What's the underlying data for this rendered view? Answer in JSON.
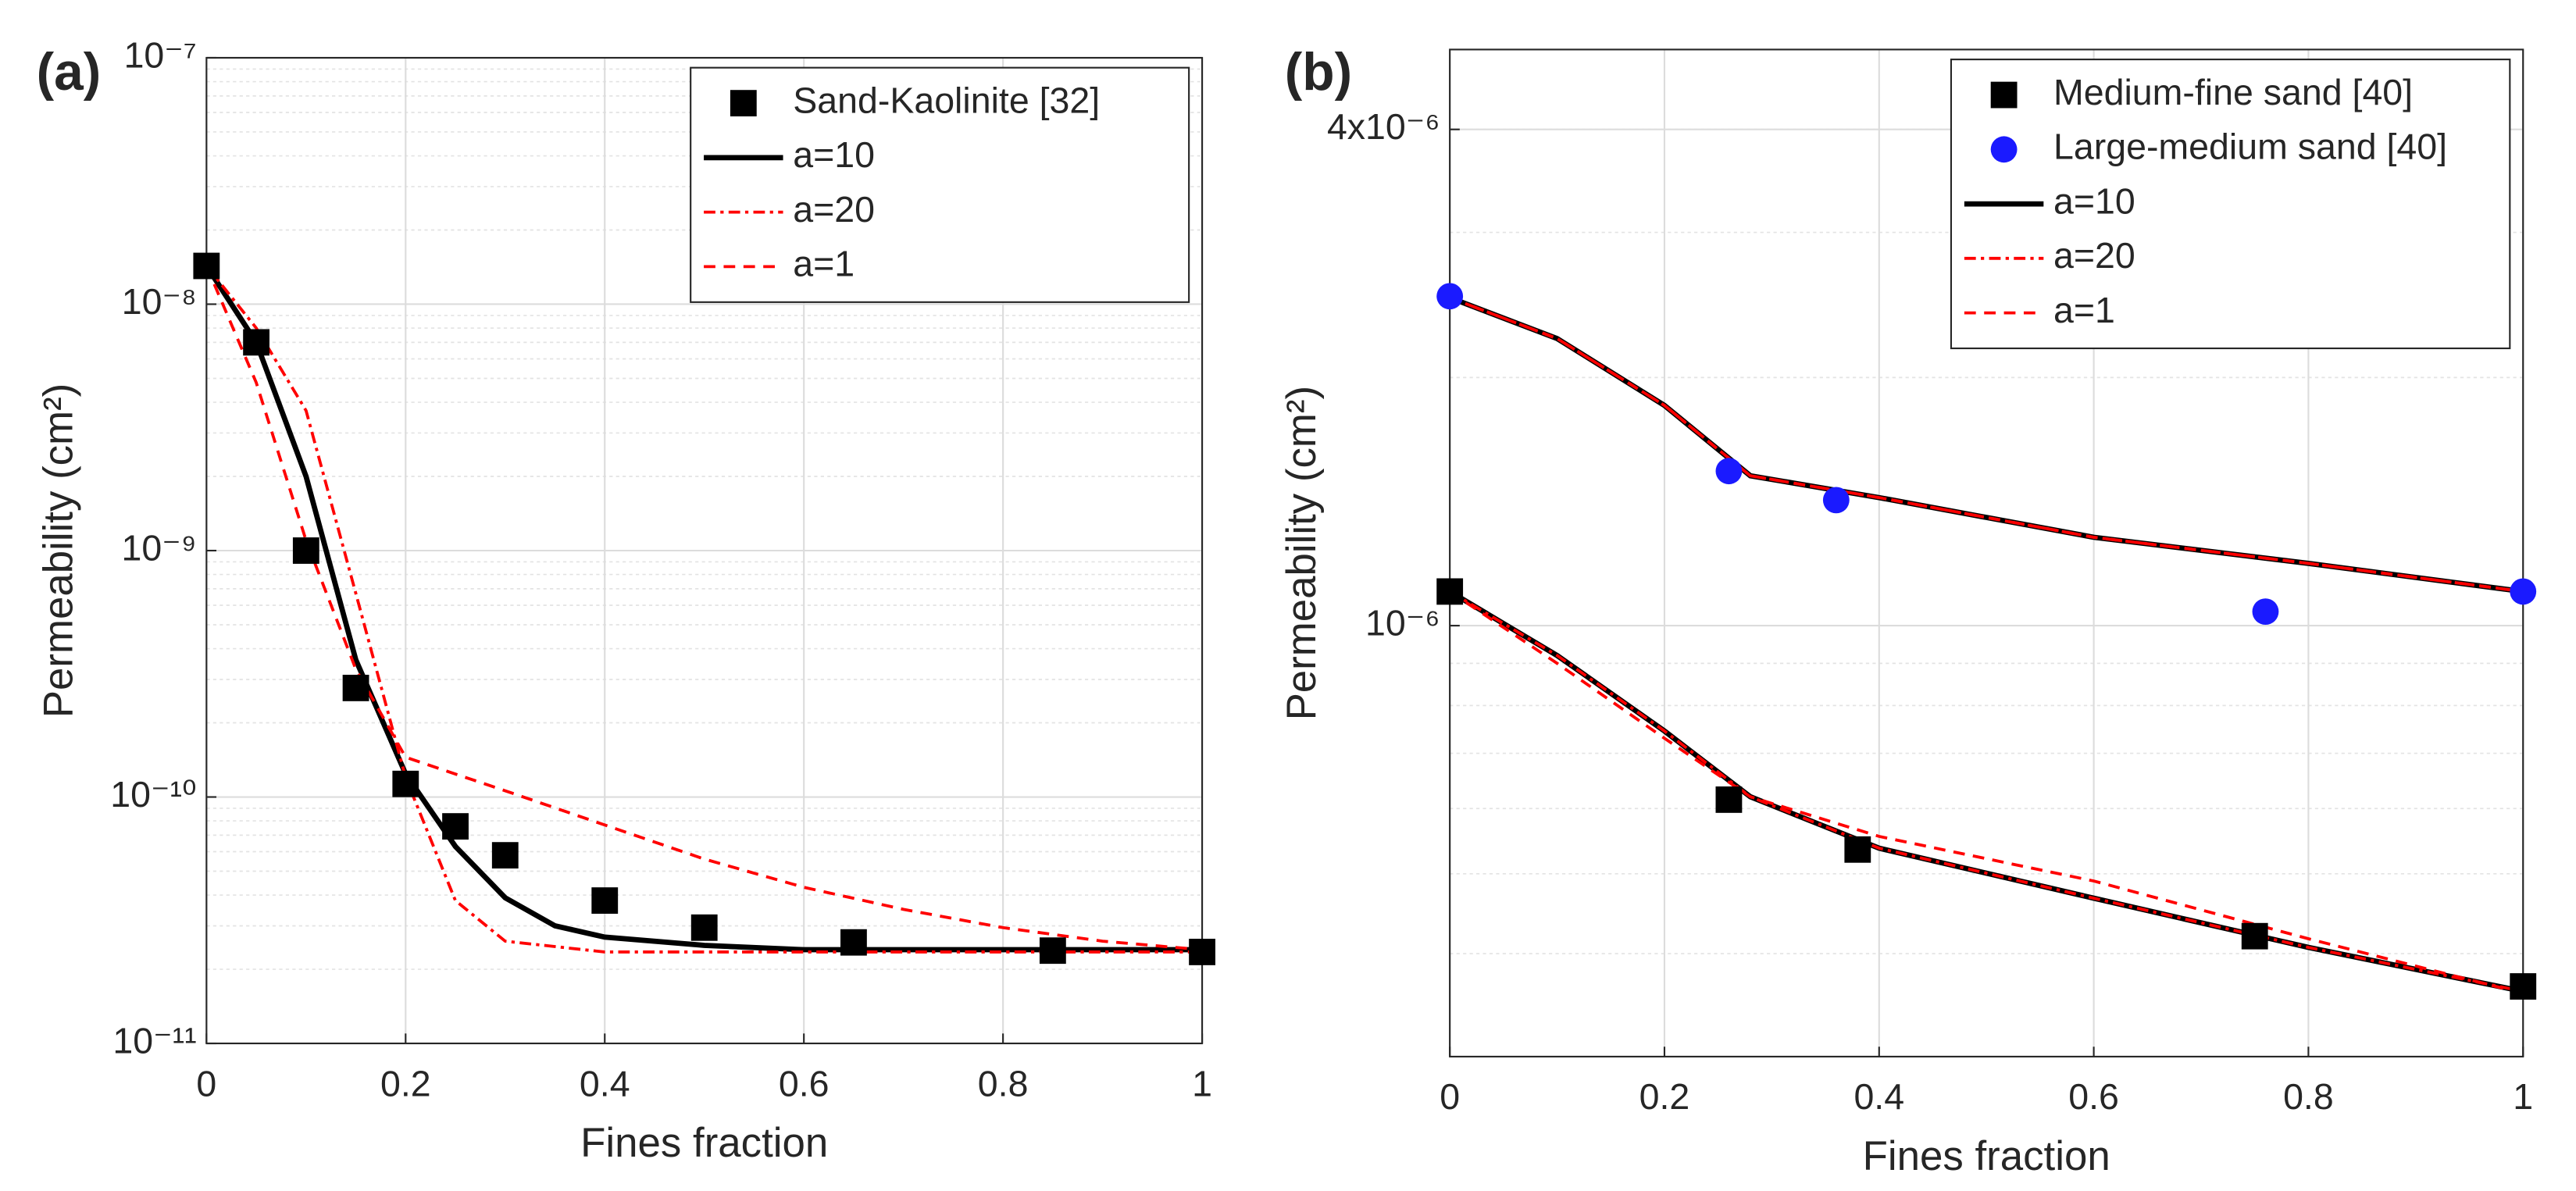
{
  "chart_data": [
    {
      "type": "line",
      "panel_label": "(a)",
      "xlabel": "Fines fraction",
      "ylabel": "Permeability (cm²)",
      "xlim": [
        0,
        1
      ],
      "xticks": [
        0,
        0.2,
        0.4,
        0.6,
        0.8,
        1
      ],
      "ylim": [
        1e-11,
        1e-07
      ],
      "log_y": true,
      "grid": true,
      "minor_grid": true,
      "legend": "upper right",
      "yticks": [
        {
          "value": 1e-11,
          "label": "10⁻¹¹"
        },
        {
          "value": 1e-10,
          "label": "10⁻¹⁰"
        },
        {
          "value": 1e-09,
          "label": "10⁻⁹"
        },
        {
          "value": 1e-08,
          "label": "10⁻⁸"
        },
        {
          "value": 1e-07,
          "label": "10⁻⁷"
        }
      ],
      "series": [
        {
          "name": "Sand-Kaolinite [32]",
          "color": "#000000",
          "marker": "square",
          "x": [
            0,
            0.05,
            0.1,
            0.15,
            0.2,
            0.25,
            0.3,
            0.4,
            0.5,
            0.65,
            0.85,
            1
          ],
          "values": [
            1.43e-08,
            7e-09,
            1e-09,
            2.77e-10,
            1.13e-10,
            7.6e-11,
            5.8e-11,
            3.8e-11,
            2.95e-11,
            2.57e-11,
            2.38e-11,
            2.35e-11
          ]
        },
        {
          "name": "a=10",
          "color": "#000000",
          "line": "solid",
          "x": [
            0,
            0.05,
            0.1,
            0.15,
            0.2,
            0.25,
            0.3,
            0.35,
            0.4,
            0.5,
            0.6,
            0.8,
            1
          ],
          "values": [
            1.43e-08,
            7e-09,
            2e-09,
            3.6e-10,
            1.24e-10,
            6.3e-11,
            3.9e-11,
            3e-11,
            2.7e-11,
            2.5e-11,
            2.4e-11,
            2.4e-11,
            2.4e-11
          ]
        },
        {
          "name": "a=20",
          "color": "#ff0000",
          "line": "dashdot",
          "x": [
            0,
            0.05,
            0.1,
            0.15,
            0.2,
            0.25,
            0.3,
            0.4,
            0.6,
            0.8,
            1
          ],
          "values": [
            1.43e-08,
            8e-09,
            3.7e-09,
            6.7e-10,
            1.2e-10,
            3.8e-11,
            2.6e-11,
            2.35e-11,
            2.35e-11,
            2.35e-11,
            2.35e-11
          ]
        },
        {
          "name": "a=1",
          "color": "#ff0000",
          "line": "dashed",
          "x": [
            0,
            0.05,
            0.1,
            0.15,
            0.2,
            0.3,
            0.4,
            0.5,
            0.6,
            0.7,
            0.8,
            0.9,
            1
          ],
          "values": [
            1.43e-08,
            4.8e-09,
            1.1e-09,
            3.3e-10,
            1.45e-10,
            1.06e-10,
            7.7e-11,
            5.6e-11,
            4.3e-11,
            3.5e-11,
            2.95e-11,
            2.6e-11,
            2.4e-11
          ]
        }
      ]
    },
    {
      "type": "line",
      "panel_label": "(b)",
      "xlabel": "Fines fraction",
      "ylabel": "Permeability (cm²)",
      "xlim": [
        0,
        1
      ],
      "xticks": [
        0,
        0.2,
        0.4,
        0.6,
        0.8,
        1
      ],
      "ylim": [
        3e-07,
        5e-06
      ],
      "log_y": true,
      "grid": true,
      "minor_grid": true,
      "legend": "upper right",
      "yticks": [
        {
          "value": 1e-06,
          "label": "10⁻⁶"
        },
        {
          "value": 4e-06,
          "label": "4x10⁻⁶"
        }
      ],
      "series": [
        {
          "name": "Medium-fine sand [40]",
          "color": "#000000",
          "marker": "square",
          "x": [
            0,
            0.26,
            0.38,
            0.75,
            1
          ],
          "values": [
            1.1e-06,
            6.15e-07,
            5.35e-07,
            4.2e-07,
            3.65e-07
          ]
        },
        {
          "name": "Large-medium sand [40]",
          "color": "#1a1aff",
          "marker": "circle",
          "x": [
            0,
            0.26,
            0.36,
            0.76,
            1
          ],
          "values": [
            2.51e-06,
            1.54e-06,
            1.42e-06,
            1.04e-06,
            1.1e-06
          ]
        },
        {
          "name": "a=10",
          "color": "#000000",
          "line": "solid",
          "x": [
            0,
            0.1,
            0.2,
            0.28,
            0.4,
            0.6,
            0.8,
            1,
            null,
            0,
            0.1,
            0.2,
            0.28,
            0.4,
            0.6,
            0.8,
            1
          ],
          "values": [
            2.5e-06,
            2.23e-06,
            1.85e-06,
            1.52e-06,
            1.43e-06,
            1.28e-06,
            1.19e-06,
            1.1e-06,
            null,
            1.1e-06,
            9.2e-07,
            7.45e-07,
            6.2e-07,
            5.37e-07,
            4.67e-07,
            4.07e-07,
            3.6e-07
          ]
        },
        {
          "name": "a=20",
          "color": "#ff0000",
          "line": "dashdot",
          "x": [
            0,
            0.1,
            0.2,
            0.28,
            0.4,
            0.6,
            0.8,
            1,
            null,
            0,
            0.1,
            0.2,
            0.28,
            0.4,
            0.6,
            0.8,
            1
          ],
          "values": [
            2.5e-06,
            2.23e-06,
            1.85e-06,
            1.52e-06,
            1.43e-06,
            1.28e-06,
            1.19e-06,
            1.1e-06,
            null,
            1.1e-06,
            9.2e-07,
            7.45e-07,
            6.2e-07,
            5.37e-07,
            4.67e-07,
            4.07e-07,
            3.6e-07
          ]
        },
        {
          "name": "a=1",
          "color": "#ff0000",
          "line": "dashed",
          "x": [
            0,
            0.1,
            0.2,
            0.28,
            0.4,
            0.6,
            0.8,
            1,
            null,
            0,
            0.1,
            0.2,
            0.28,
            0.4,
            0.6,
            0.8,
            1
          ],
          "values": [
            2.5e-06,
            2.23e-06,
            1.85e-06,
            1.52e-06,
            1.43e-06,
            1.28e-06,
            1.19e-06,
            1.1e-06,
            null,
            1.1e-06,
            9e-07,
            7.3e-07,
            6.2e-07,
            5.55e-07,
            4.9e-07,
            4.17e-07,
            3.58e-07
          ]
        }
      ]
    }
  ]
}
